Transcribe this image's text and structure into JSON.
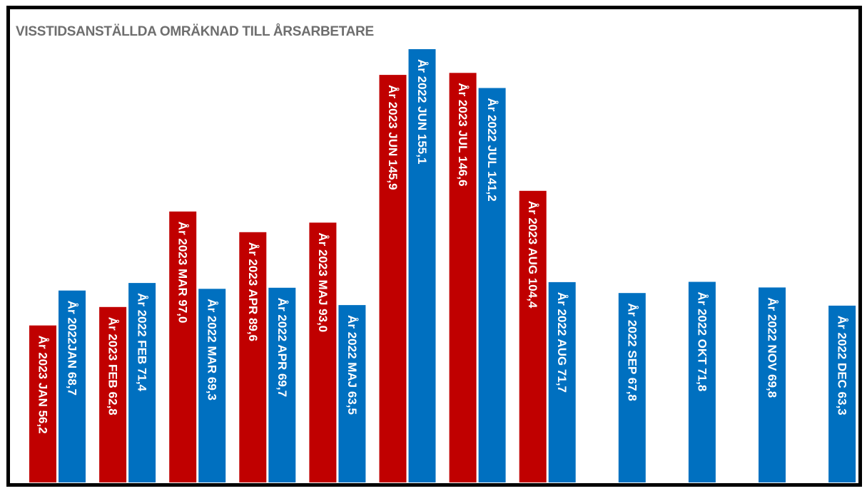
{
  "chart_data": {
    "type": "bar",
    "title": "VISSTIDSANSTÄLLDA OMRÄKNAD TILL ÅRSARBETARE",
    "colors": {
      "series_2023": "#c00000",
      "series_2022": "#0070c0",
      "background": "#ffffff",
      "frame": "#000000"
    },
    "grid": false,
    "legend": "none",
    "ylim": [
      0,
      160
    ],
    "categories": [
      "JAN",
      "FEB",
      "MAR",
      "APR",
      "MAJ",
      "JUN",
      "JUL",
      "AUG",
      "SEP",
      "OKT",
      "NOV",
      "DEC"
    ],
    "series": [
      {
        "values": [
          56.2,
          62.8,
          97.0,
          89.6,
          93.0,
          145.9,
          146.6,
          104.4,
          null,
          null,
          null,
          null
        ],
        "labels": [
          "År 2023 JAN  56,2",
          "År 2023 FEB  62,8",
          "År 2023 MAR  97,0",
          "År 2023 APR  89,6",
          "År 2023 MAJ  93,0",
          "År 2023 JUN  145,9",
          "År 2023 JUL  146,6",
          "År 2023 AUG  104,4",
          "",
          "",
          "",
          ""
        ]
      },
      {
        "values": [
          68.7,
          71.4,
          69.3,
          69.7,
          63.5,
          155.1,
          141.2,
          71.7,
          67.8,
          71.8,
          69.8,
          63.3
        ],
        "labels": [
          "År 2022JAN  68,7",
          "År 2022 FEB  71,4",
          "År 2022 MAR  69,3",
          "År 2022 APR  69,7",
          "År 2022 MAJ  63,5",
          "År 2022 JUN  155,1",
          "År 2022 JUL  141,2",
          "År 2022 AUG  71,7",
          "År 2022 SEP  67,8",
          "År 2022 OKT  71,8",
          "År 2022 NOV  69,8",
          "År 2022 DEC  63,3"
        ]
      }
    ]
  }
}
